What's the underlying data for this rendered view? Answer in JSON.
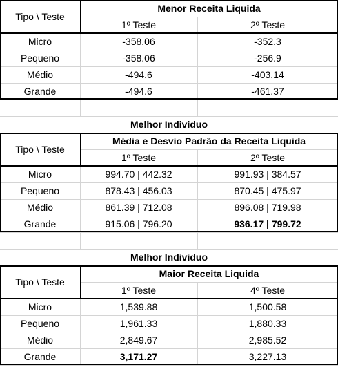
{
  "tables": [
    {
      "caption": "",
      "corner": "Tipo \\ Teste",
      "title": "Menor Receita Liquida",
      "col1": "1º Teste",
      "col2": "2º Teste",
      "rows": [
        {
          "label": "Micro",
          "v1": "-358.06",
          "v2": "-352.3",
          "b1": false,
          "b2": false
        },
        {
          "label": "Pequeno",
          "v1": "-358.06",
          "v2": "-256.9",
          "b1": false,
          "b2": false
        },
        {
          "label": "Médio",
          "v1": "-494.6",
          "v2": "-403.14",
          "b1": false,
          "b2": false
        },
        {
          "label": "Grande",
          "v1": "-494.6",
          "v2": "-461.37",
          "b1": false,
          "b2": false
        }
      ]
    },
    {
      "caption": "Melhor Individuo",
      "corner": "Tipo \\ Teste",
      "title": "Média e Desvio Padrão da Receita Liquida",
      "col1": "1º Teste",
      "col2": "2º Teste",
      "rows": [
        {
          "label": "Micro",
          "v1": "994.70 | 442.32",
          "v2": "991.93 | 384.57",
          "b1": false,
          "b2": false
        },
        {
          "label": "Pequeno",
          "v1": "878.43 | 456.03",
          "v2": "870.45 | 475.97",
          "b1": false,
          "b2": false
        },
        {
          "label": "Médio",
          "v1": "861.39 | 712.08",
          "v2": "896.08 | 719.98",
          "b1": false,
          "b2": false
        },
        {
          "label": "Grande",
          "v1": "915.06 | 796.20",
          "v2": "936.17 | 799.72",
          "b1": false,
          "b2": true
        }
      ]
    },
    {
      "caption": "Melhor Individuo",
      "corner": "Tipo \\ Teste",
      "title": "Maior Receita Liquida",
      "col1": "1º Teste",
      "col2": "4º Teste",
      "rows": [
        {
          "label": "Micro",
          "v1": "1,539.88",
          "v2": "1,500.58",
          "b1": false,
          "b2": false
        },
        {
          "label": "Pequeno",
          "v1": "1,961.33",
          "v2": "1,880.33",
          "b1": false,
          "b2": false
        },
        {
          "label": "Médio",
          "v1": "2,849.67",
          "v2": "2,985.52",
          "b1": false,
          "b2": false
        },
        {
          "label": "Grande",
          "v1": "3,171.27",
          "v2": "3,227.13",
          "b1": true,
          "b2": false
        }
      ]
    }
  ]
}
